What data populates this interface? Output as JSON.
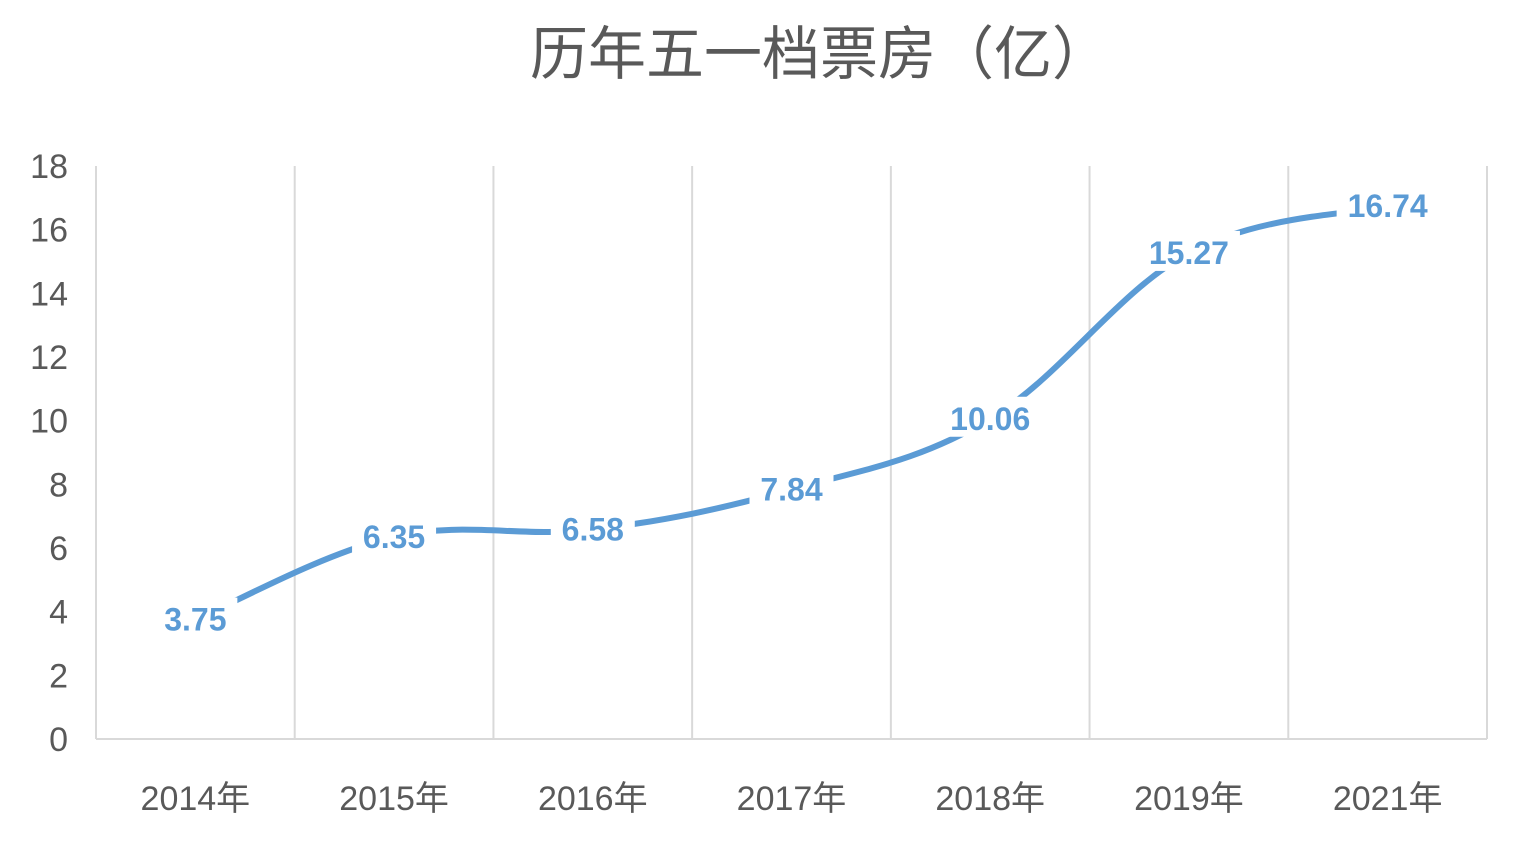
{
  "chart_data": {
    "type": "line",
    "title": "历年五一档票房（亿）",
    "categories": [
      "2014年",
      "2015年",
      "2016年",
      "2017年",
      "2018年",
      "2019年",
      "2021年"
    ],
    "series": [
      {
        "values": [
          3.75,
          6.35,
          6.58,
          7.84,
          10.06,
          15.27,
          16.74
        ],
        "color": "#5b9bd5",
        "smooth": true
      }
    ],
    "y_ticks": [
      "0",
      "2",
      "4",
      "6",
      "8",
      "10",
      "12",
      "14",
      "16",
      "18"
    ],
    "data_labels": [
      "3.75",
      "6.35",
      "6.58",
      "7.84",
      "10.06",
      "15.27",
      "16.74"
    ],
    "ylim": [
      0,
      18
    ],
    "grid": {
      "vertical": true,
      "horizontal": false
    },
    "legend": "none",
    "colors": {
      "line": "#5b9bd5",
      "grid": "#d9d9d9",
      "axis": "#d9d9d9",
      "text": "#595959"
    }
  }
}
